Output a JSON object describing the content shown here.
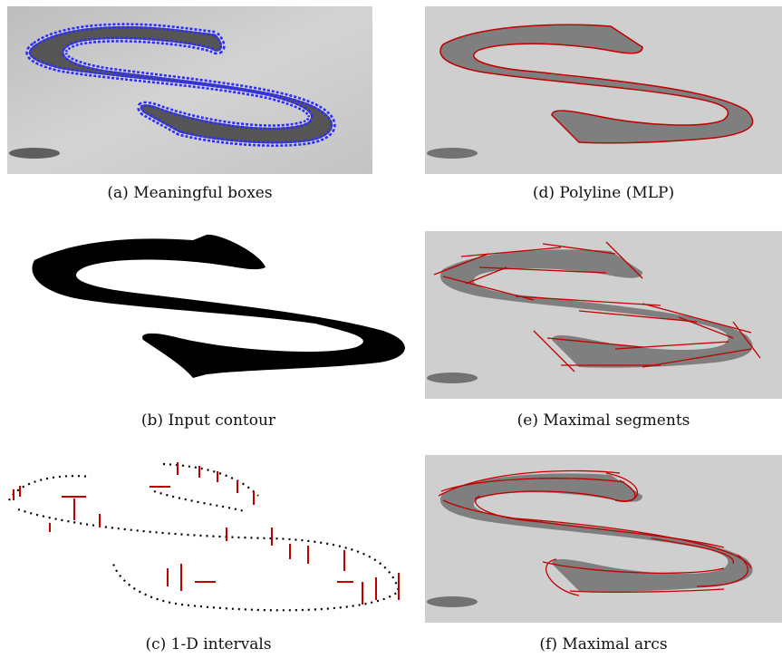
{
  "figure": {
    "panels": [
      {
        "id": "a",
        "caption": "(a) Meaningful boxes"
      },
      {
        "id": "b",
        "caption": "(b) Input contour"
      },
      {
        "id": "c",
        "caption": "(c) 1-D intervals"
      },
      {
        "id": "d",
        "caption": "(d) Polyline (MLP)"
      },
      {
        "id": "e",
        "caption": "(e) Maximal segments"
      },
      {
        "id": "f",
        "caption": "(f) Maximal arcs"
      }
    ],
    "colors": {
      "background_gray": "#c9c9c9",
      "stroke_gray": "#7a7a7a",
      "boxes": "#2b2bff",
      "overlay": "#c00000",
      "ink": "#000000"
    }
  }
}
